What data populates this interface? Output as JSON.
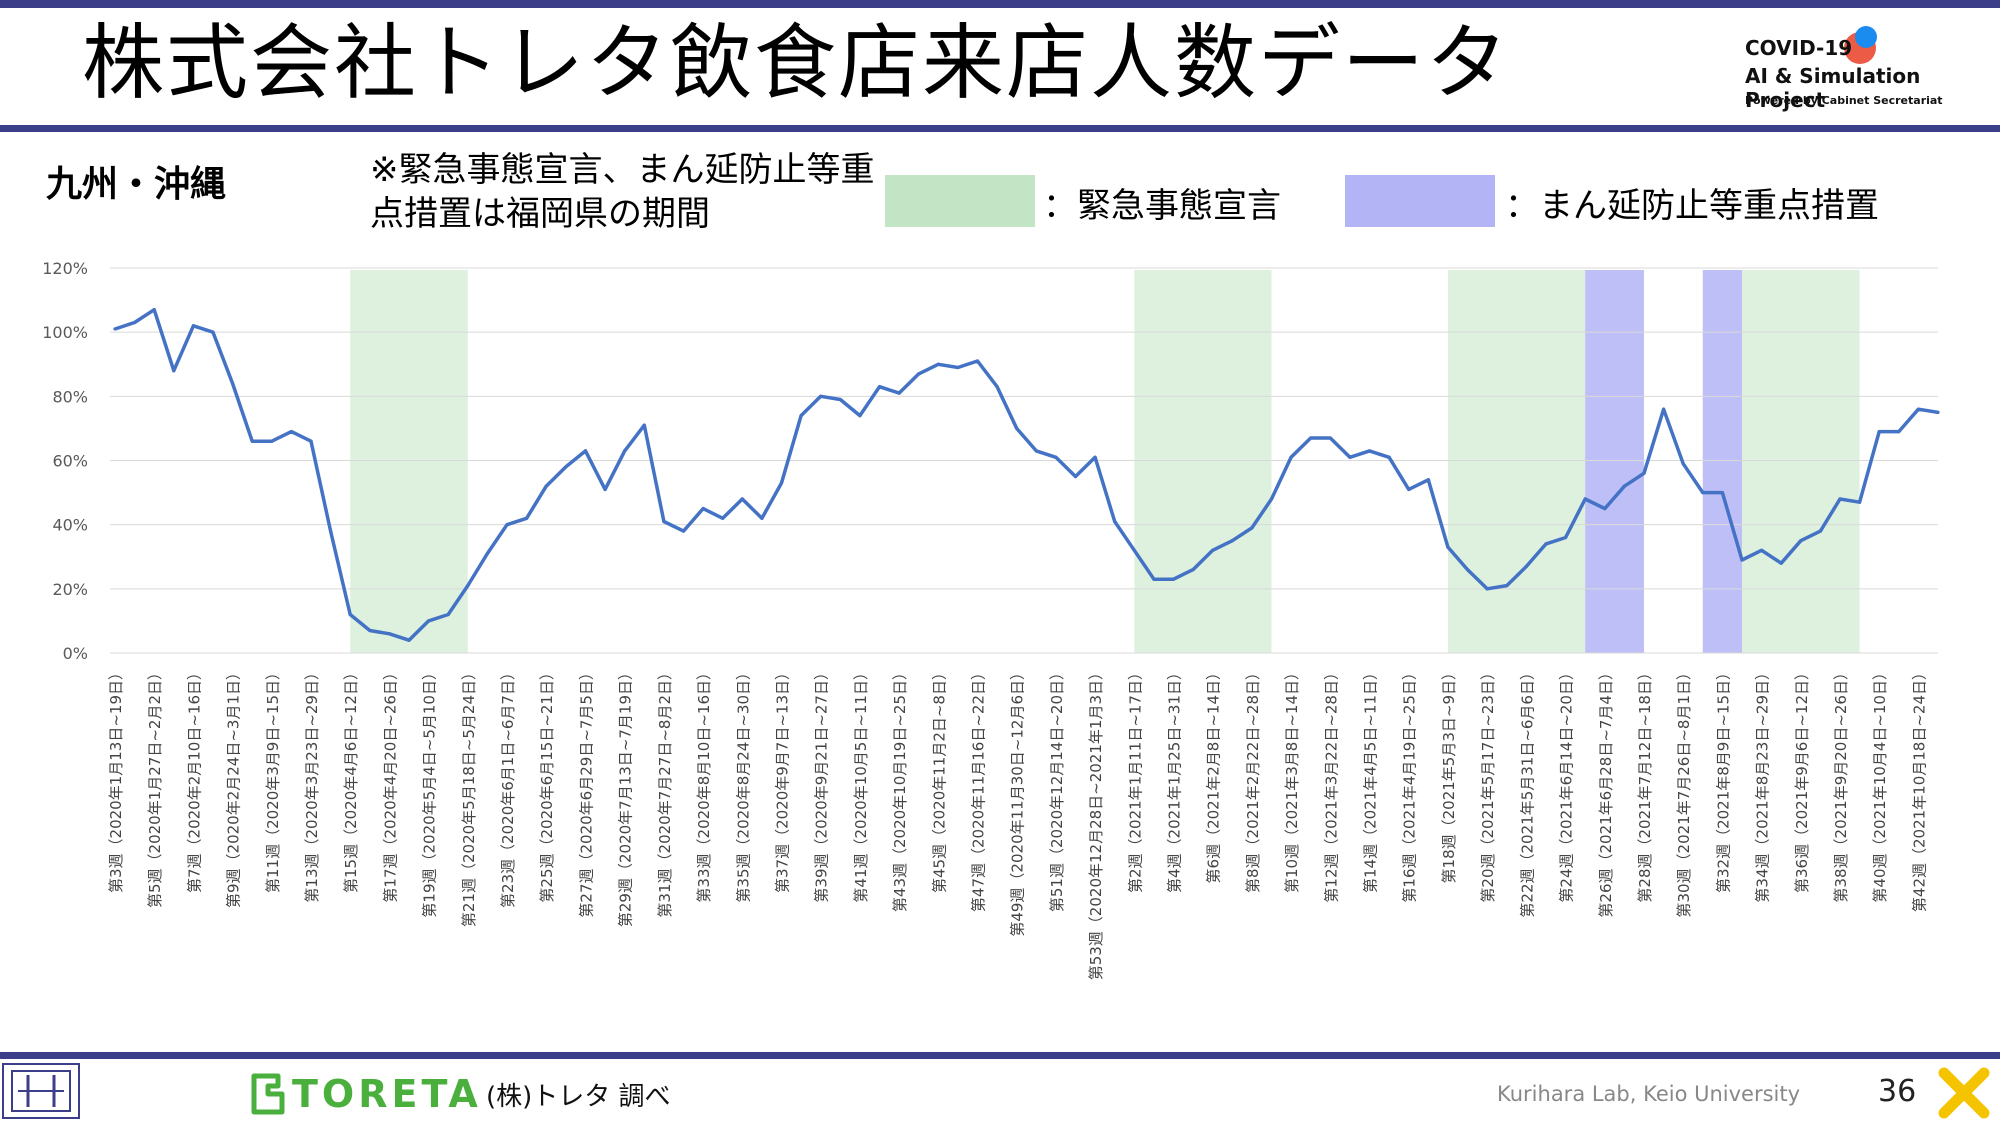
{
  "header": {
    "title": "株式会社トレタ飲食店来店人数データ",
    "logo_line1": "COVID-19",
    "logo_line2": "AI & Simulation Project",
    "logo_line3": "Powered by Cabinet Secretariat"
  },
  "region": "九州・沖縄",
  "note": "※緊急事態宣言、まん延防止等重点措置は福岡県の期間",
  "legend": [
    {
      "label": "：緊急事態宣言",
      "color": "#c3e5c5"
    },
    {
      "label": "：まん延防止等重点措置",
      "color": "#b3b4f6"
    }
  ],
  "footer": {
    "brand": "TORETA",
    "source": "(株)トレタ 調べ",
    "lab": "Kurihara Lab, Keio University",
    "page": "36"
  },
  "chart_data": {
    "type": "line",
    "ylim": [
      0,
      1.2
    ],
    "y_ticks": [
      "0%",
      "20%",
      "40%",
      "60%",
      "80%",
      "100%",
      "120%"
    ],
    "line_color": "#4472c4",
    "x_labels": [
      "第3週（2020年1月13日~19日）",
      "第5週（2020年1月27日~2月2日）",
      "第7週（2020年2月10日~16日）",
      "第9週（2020年2月24日~3月1日）",
      "第11週（2020年3月9日~15日）",
      "第13週（2020年3月23日~29日）",
      "第15週（2020年4月6日~12日）",
      "第17週（2020年4月20日~26日）",
      "第19週（2020年5月4日~5月10日）",
      "第21週（2020年5月18日~5月24日）",
      "第23週（2020年6月1日~6月7日）",
      "第25週（2020年6月15日~21日）",
      "第27週（2020年6月29日~7月5日）",
      "第29週（2020年7月13日~7月19日）",
      "第31週（2020年7月27日~8月2日）",
      "第33週（2020年8月10日~16日）",
      "第35週（2020年8月24日~30日）",
      "第37週（2020年9月7日~13日）",
      "第39週（2020年9月21日~27日）",
      "第41週（2020年10月5日~11日）",
      "第43週（2020年10月19日~25日）",
      "第45週（2020年11月2日~8日）",
      "第47週（2020年11月16日~22日）",
      "第49週（2020年11月30日~12月6日）",
      "第51週（2020年12月14日~20日）",
      "第53週（2020年12月28日~2021年1月3日）",
      "第2週（2021年1月11日~17日）",
      "第4週（2021年1月25日~31日）",
      "第6週（2021年2月8日~14日）",
      "第8週（2021年2月22日~28日）",
      "第10週（2021年3月8日~14日）",
      "第12週（2021年3月22日~28日）",
      "第14週（2021年4月5日~11日）",
      "第16週（2021年4月19日~25日）",
      "第18週（2021年5月3日~9日）",
      "第20週（2021年5月17日~23日）",
      "第22週（2021年5月31日~6月6日）",
      "第24週（2021年6月14日~20日）",
      "第26週（2021年6月28日~7月4日）",
      "第28週（2021年7月12日~18日）",
      "第30週（2021年7月26日~8月1日）",
      "第32週（2021年8月9日~15日）",
      "第34週（2021年8月23日~29日）",
      "第36週（2021年9月6日~12日）",
      "第38週（2021年9月20日~26日）",
      "第40週（2021年10月4日~10日）",
      "第42週（2021年10月18日~24日）"
    ],
    "series": [
      {
        "values": [
          1.01,
          1.03,
          1.07,
          0.88,
          1.02,
          1.0,
          0.84,
          0.66,
          0.66,
          0.69,
          0.66,
          0.38,
          0.12,
          0.07,
          0.06,
          0.04,
          0.1,
          0.12,
          0.21,
          0.31,
          0.4,
          0.42,
          0.52,
          0.58,
          0.63,
          0.51,
          0.63,
          0.71,
          0.41,
          0.38,
          0.45,
          0.42,
          0.48,
          0.42,
          0.53,
          0.74,
          0.8,
          0.79,
          0.74,
          0.83,
          0.81,
          0.87,
          0.9,
          0.89,
          0.91,
          0.83,
          0.7,
          0.63,
          0.61,
          0.55,
          0.61,
          0.41,
          0.32,
          0.23,
          0.23,
          0.26,
          0.32,
          0.35,
          0.39,
          0.48,
          0.61,
          0.67,
          0.67,
          0.61,
          0.63,
          0.61,
          0.51,
          0.54,
          0.33,
          0.26,
          0.2,
          0.21,
          0.27,
          0.34,
          0.36,
          0.48,
          0.45,
          0.52,
          0.56,
          0.76,
          0.59,
          0.5,
          0.5,
          0.29,
          0.32,
          0.28,
          0.35,
          0.38,
          0.48,
          0.47,
          0.69,
          0.69,
          0.76,
          0.75
        ]
      }
    ],
    "periods": [
      {
        "kind": "emergency",
        "start": 12,
        "end": 18
      },
      {
        "kind": "emergency",
        "start": 52,
        "end": 59
      },
      {
        "kind": "emergency",
        "start": 68,
        "end": 75
      },
      {
        "kind": "priority",
        "start": 75,
        "end": 78
      },
      {
        "kind": "priority",
        "start": 81,
        "end": 83
      },
      {
        "kind": "emergency",
        "start": 83,
        "end": 89
      }
    ],
    "grid": true
  }
}
